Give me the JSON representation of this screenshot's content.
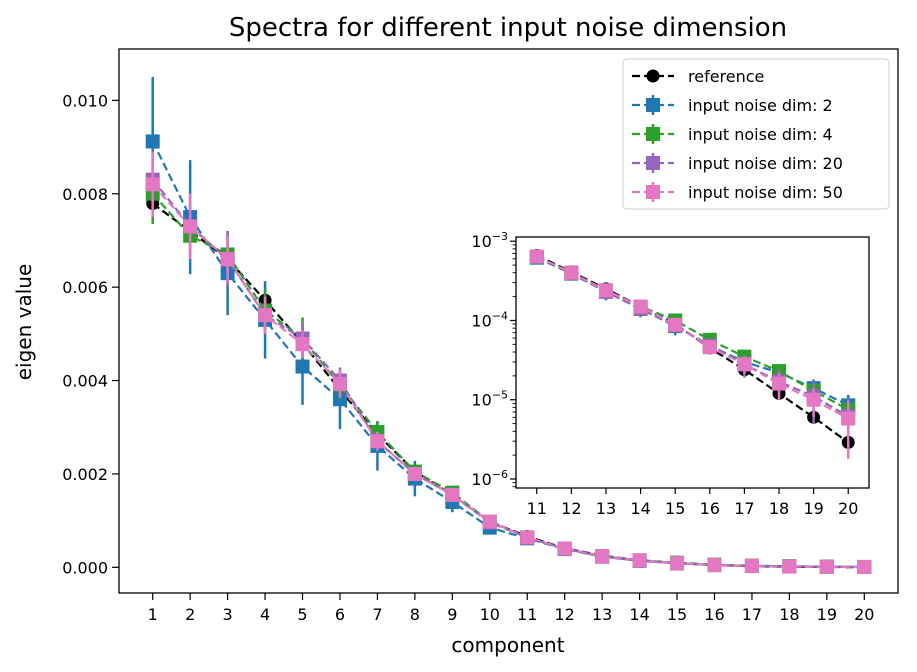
{
  "chart_data": [
    {
      "type": "line",
      "title": "Spectra for different input noise dimension",
      "xlabel": "component",
      "ylabel": "eigen value",
      "x": [
        1,
        2,
        3,
        4,
        5,
        6,
        7,
        8,
        9,
        10,
        11,
        12,
        13,
        14,
        15,
        16,
        17,
        18,
        19,
        20
      ],
      "xticks": [
        "1",
        "2",
        "3",
        "4",
        "5",
        "6",
        "7",
        "8",
        "9",
        "10",
        "11",
        "12",
        "13",
        "14",
        "15",
        "16",
        "17",
        "18",
        "19",
        "20"
      ],
      "yticks": [
        "0.000",
        "0.002",
        "0.004",
        "0.006",
        "0.008",
        "0.010"
      ],
      "ylim": [
        -0.00055,
        0.0111
      ],
      "legend_position": "upper-right",
      "grid": false,
      "series": [
        {
          "name": "reference",
          "color": "#000000",
          "marker": "circle",
          "values": [
            0.00779,
            0.0072,
            0.0066,
            0.00572,
            0.0048,
            0.0038,
            0.00285,
            0.00205,
            0.00155,
            0.00098,
            0.00066,
            0.00041,
            0.00025,
            0.00015,
            9e-05,
            4.5e-05,
            2.4e-05,
            1.2e-05,
            6e-06,
            2.9e-06
          ],
          "err": [
            0,
            0,
            0,
            0,
            0,
            0,
            0,
            0,
            0,
            0,
            0,
            0,
            0,
            0,
            0,
            0,
            0,
            0,
            0,
            0
          ]
        },
        {
          "name": "input noise dim: 2",
          "color": "#1f77b4",
          "marker": "square",
          "values": [
            0.00912,
            0.0075,
            0.0063,
            0.0053,
            0.0043,
            0.0036,
            0.0026,
            0.0019,
            0.0014,
            0.00085,
            0.00062,
            0.00039,
            0.00023,
            0.00014,
            8.5e-05,
            4.8e-05,
            3e-05,
            2.2e-05,
            1.4e-05,
            8.5e-06
          ],
          "err": [
            0.00138,
            0.00122,
            0.0009,
            0.00083,
            0.00082,
            0.00064,
            0.00053,
            0.00038,
            0.00022,
            0.00012,
            0.0001,
            6e-05,
            5e-05,
            3e-05,
            2e-05,
            1e-05,
            6e-06,
            5e-06,
            4e-06,
            3e-06
          ]
        },
        {
          "name": "input noise dim: 4",
          "color": "#2ca02c",
          "marker": "square",
          "values": [
            0.008,
            0.0071,
            0.0067,
            0.0055,
            0.0049,
            0.0039,
            0.0029,
            0.00205,
            0.0016,
            0.00098,
            0.00064,
            0.0004,
            0.00024,
            0.00015,
            0.0001,
            5.7e-05,
            3.5e-05,
            2.3e-05,
            1.3e-05,
            7.5e-06
          ],
          "err": [
            0.00065,
            0.00045,
            0.0004,
            0.00045,
            0.00045,
            0.0003,
            0.00022,
            0.00015,
            0.0001,
            8e-05,
            6e-05,
            4e-05,
            3e-05,
            2e-05,
            1e-05,
            7e-06,
            5e-06,
            5e-06,
            3e-06,
            2e-06
          ]
        },
        {
          "name": "input noise dim: 20",
          "color": "#9467bd",
          "marker": "square",
          "values": [
            0.0083,
            0.0073,
            0.0066,
            0.0054,
            0.0049,
            0.004,
            0.0027,
            0.002,
            0.00155,
            0.00096,
            0.00064,
            0.0004,
            0.00023,
            0.00014,
            8.7e-05,
            4.8e-05,
            2.8e-05,
            1.7e-05,
            1.1e-05,
            6.2e-06
          ],
          "err": [
            0.0006,
            0.0007,
            0.0006,
            0.0004,
            0.00035,
            0.00028,
            0.0002,
            0.00013,
            0.0001,
            7e-05,
            5e-05,
            4e-05,
            3e-05,
            2e-05,
            1e-05,
            8e-06,
            9e-06,
            7e-06,
            6e-06,
            4e-06
          ]
        },
        {
          "name": "input noise dim: 50",
          "color": "#e377c2",
          "marker": "square",
          "values": [
            0.0082,
            0.0073,
            0.0066,
            0.0054,
            0.00478,
            0.00393,
            0.0027,
            0.002,
            0.00155,
            0.00098,
            0.00064,
            0.0004,
            0.00024,
            0.00015,
            8.8e-05,
            4.6e-05,
            2.8e-05,
            1.6e-05,
            1e-05,
            5.8e-06
          ],
          "err": [
            0.0007,
            0.0007,
            0.0005,
            0.0004,
            0.0003,
            0.0003,
            0.0002,
            0.00015,
            0.0001,
            7e-05,
            5e-05,
            4e-05,
            3e-05,
            2e-05,
            1e-05,
            8e-06,
            7e-06,
            6e-06,
            4e-06,
            4e-06
          ]
        }
      ]
    },
    {
      "type": "line",
      "title": "",
      "xlabel": "",
      "ylabel": "",
      "scale_y": "log",
      "x": [
        11,
        12,
        13,
        14,
        15,
        16,
        17,
        18,
        19,
        20
      ],
      "xticks": [
        "11",
        "12",
        "13",
        "14",
        "15",
        "16",
        "17",
        "18",
        "19",
        "20"
      ],
      "yticks": [
        {
          "value": 0.001,
          "base": "10",
          "exp": "−3"
        },
        {
          "value": 0.0001,
          "base": "10",
          "exp": "−4"
        },
        {
          "value": 1e-05,
          "base": "10",
          "exp": "−5"
        },
        {
          "value": 1e-06,
          "base": "10",
          "exp": "−6"
        }
      ],
      "ylim": [
        7.7e-07,
        0.00113
      ],
      "series_ref": "main series, components 11–20"
    }
  ]
}
